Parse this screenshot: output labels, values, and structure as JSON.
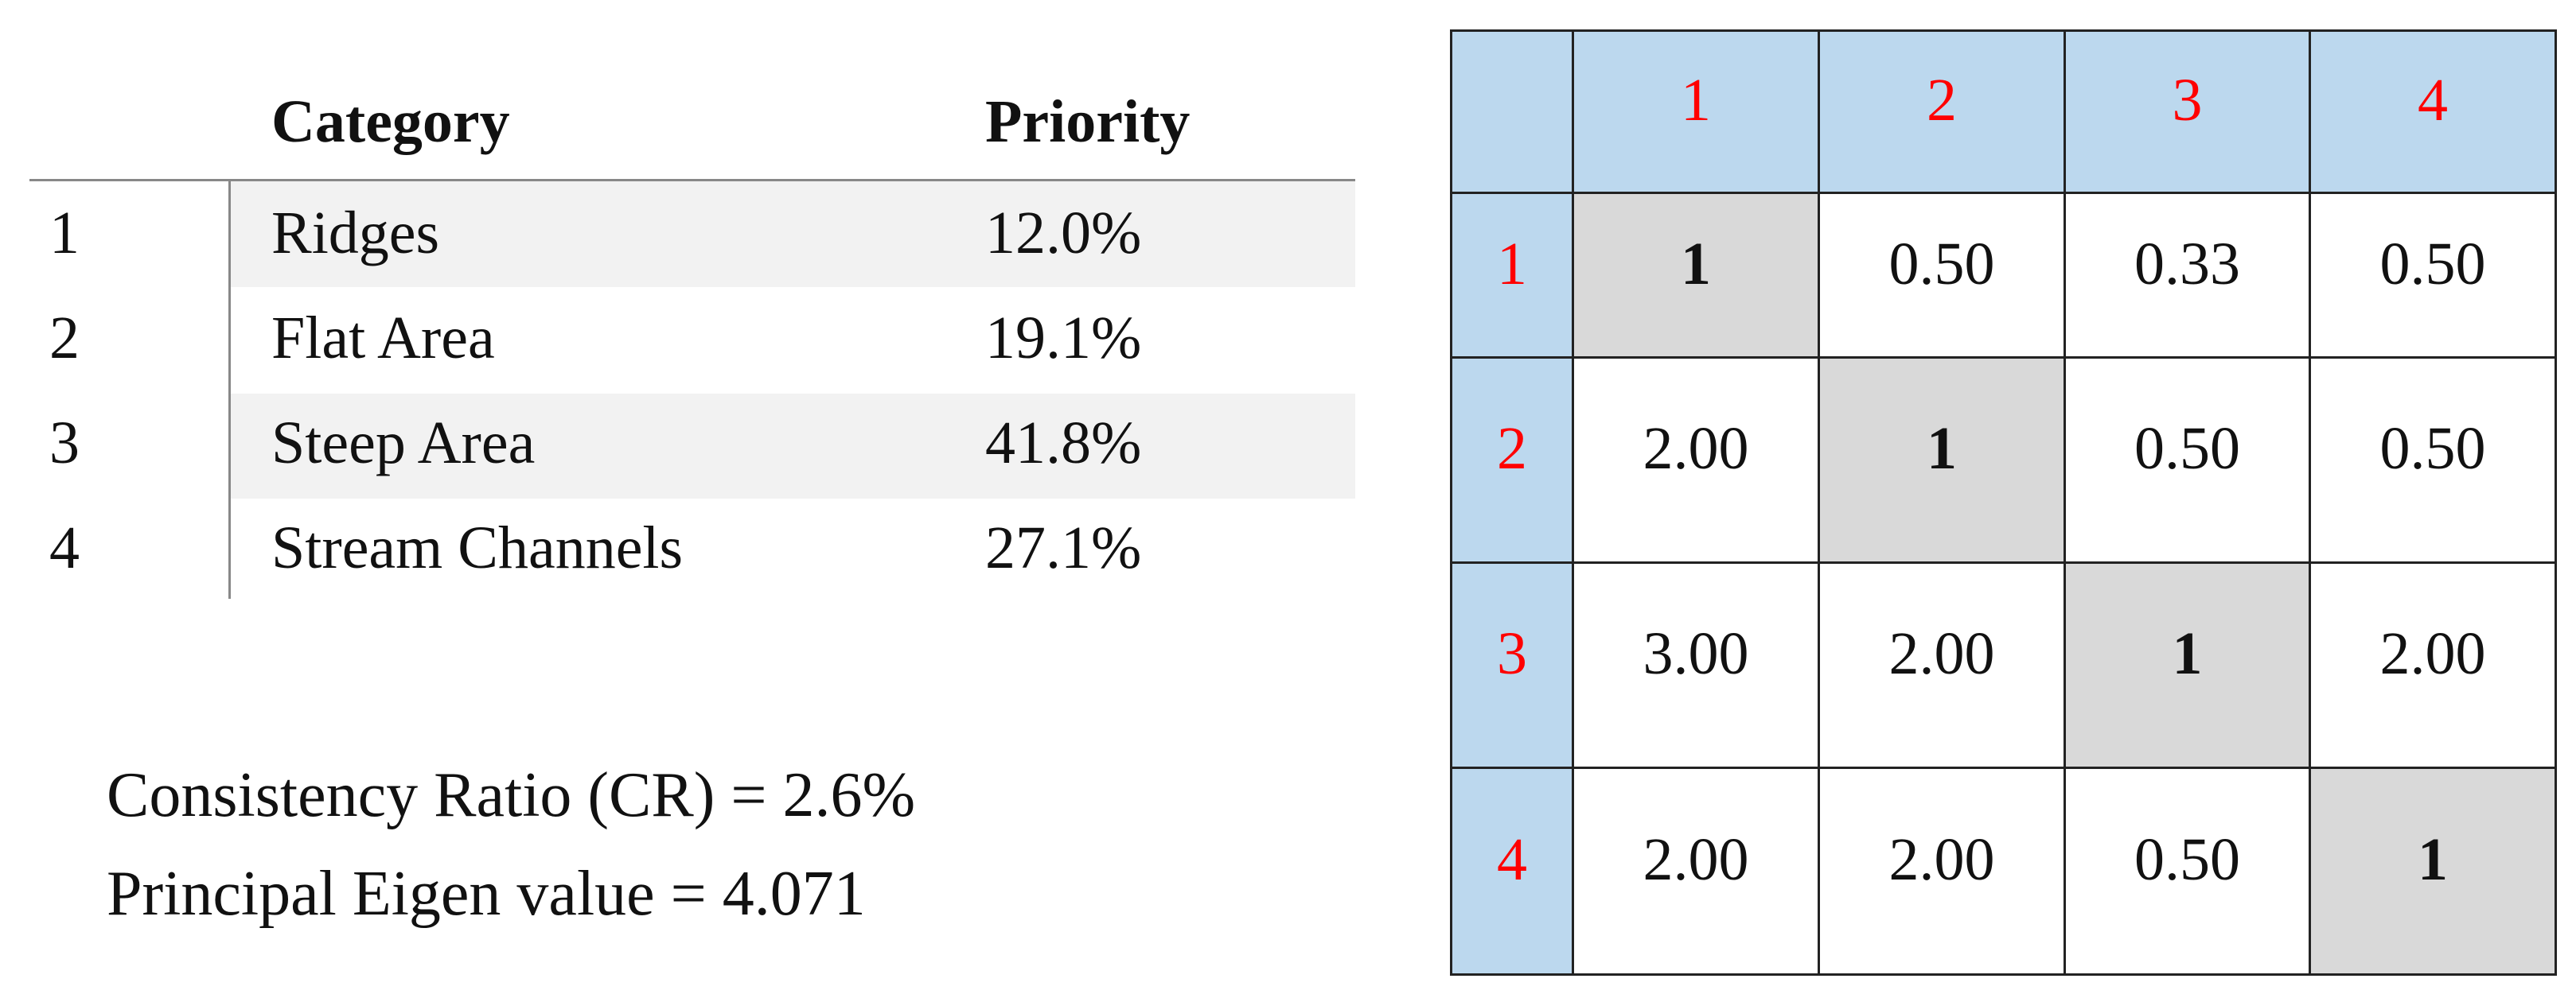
{
  "priority_table": {
    "headers": [
      "Category",
      "Priority"
    ],
    "rows": [
      [
        "1",
        "Ridges",
        "12.0%"
      ],
      [
        "2",
        "Flat Area",
        "19.1%"
      ],
      [
        "3",
        "Steep Area",
        "41.8%"
      ],
      [
        "4",
        "Stream Channels",
        "27.1%"
      ]
    ]
  },
  "notes": [
    "Consistency Ratio (CR) = 2.6%",
    "Principal Eigen value = 4.071"
  ],
  "matrix": {
    "column_headers": [
      "1",
      "2",
      "3",
      "4"
    ],
    "row_headers": [
      "1",
      "2",
      "3",
      "4"
    ],
    "rows": [
      [
        "1",
        "0.50",
        "0.33",
        "0.50"
      ],
      [
        "2.00",
        "1",
        "0.50",
        "0.50"
      ],
      [
        "3.00",
        "2.00",
        "1",
        "2.00"
      ],
      [
        "2.00",
        "2.00",
        "0.50",
        "1"
      ]
    ]
  }
}
